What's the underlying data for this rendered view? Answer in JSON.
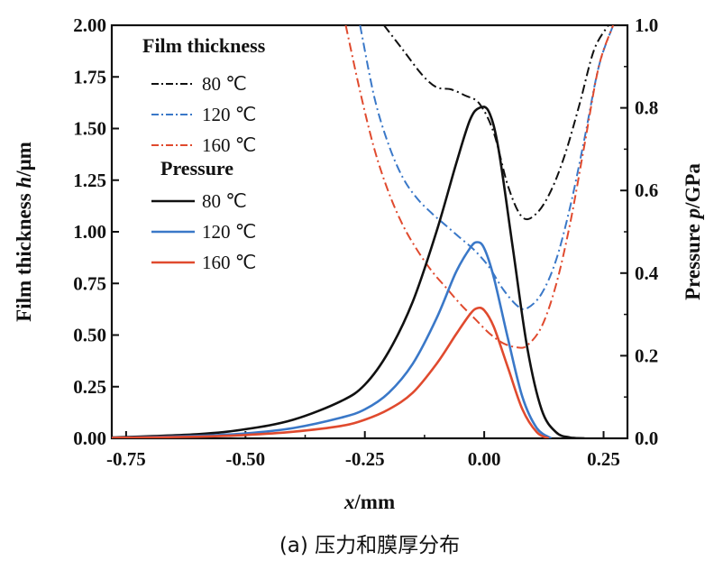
{
  "chart_data": {
    "type": "line",
    "caption": "(a) 压力和膜厚分布",
    "xlabel_var": "x",
    "xlabel_unit": "/mm",
    "ylabel_left_var": "h",
    "ylabel_left_prefix": "Film thickness ",
    "ylabel_left_unit": "/μm",
    "ylabel_right_var": "p",
    "ylabel_right_prefix": "Pressure ",
    "ylabel_right_unit": "/GPa",
    "xlim": [
      -0.78,
      0.3
    ],
    "ylim_left": [
      0,
      2.0
    ],
    "ylim_right": [
      0,
      1.0
    ],
    "x_ticks": [
      "-0.75",
      "-0.50",
      "-0.25",
      "0.00",
      "0.25"
    ],
    "x_tick_values": [
      -0.75,
      -0.5,
      -0.25,
      0.0,
      0.25
    ],
    "y_left_ticks": [
      "0.00",
      "0.25",
      "0.50",
      "0.75",
      "1.00",
      "1.25",
      "1.50",
      "1.75",
      "2.00"
    ],
    "y_left_tick_values": [
      0,
      0.25,
      0.5,
      0.75,
      1.0,
      1.25,
      1.5,
      1.75,
      2.0
    ],
    "y_right_ticks": [
      "0.0",
      "0.2",
      "0.4",
      "0.6",
      "0.8",
      "1.0"
    ],
    "y_right_tick_values": [
      0,
      0.2,
      0.4,
      0.6,
      0.8,
      1.0
    ],
    "legend": {
      "film_heading": "Film thickness",
      "pressure_heading": "Pressure",
      "position": "top-left"
    },
    "film_series": [
      {
        "name": "80 ℃",
        "color": "#111111",
        "dash": "dashdot",
        "x": [
          -0.21,
          -0.17,
          -0.13,
          -0.1,
          -0.07,
          -0.04,
          -0.01,
          0.02,
          0.05,
          0.08,
          0.11,
          0.14,
          0.17,
          0.2,
          0.23,
          0.26
        ],
        "y": [
          2.0,
          1.88,
          1.76,
          1.7,
          1.69,
          1.66,
          1.62,
          1.48,
          1.22,
          1.07,
          1.09,
          1.2,
          1.38,
          1.62,
          1.88,
          2.0
        ]
      },
      {
        "name": "120 ℃",
        "color": "#3a78c8",
        "dash": "dashdot",
        "x": [
          -0.26,
          -0.23,
          -0.2,
          -0.17,
          -0.14,
          -0.11,
          -0.08,
          -0.05,
          -0.02,
          0.01,
          0.04,
          0.07,
          0.09,
          0.12,
          0.15,
          0.18,
          0.21,
          0.24,
          0.27
        ],
        "y": [
          2.0,
          1.65,
          1.42,
          1.26,
          1.16,
          1.09,
          1.03,
          0.97,
          0.91,
          0.83,
          0.72,
          0.64,
          0.63,
          0.7,
          0.86,
          1.12,
          1.45,
          1.8,
          2.0
        ]
      },
      {
        "name": "160 ℃",
        "color": "#e04a2e",
        "dash": "dashdot",
        "x": [
          -0.29,
          -0.26,
          -0.23,
          -0.2,
          -0.17,
          -0.14,
          -0.11,
          -0.08,
          -0.05,
          -0.02,
          0.01,
          0.04,
          0.07,
          0.09,
          0.12,
          0.15,
          0.18,
          0.21,
          0.24,
          0.27
        ],
        "y": [
          2.0,
          1.68,
          1.4,
          1.19,
          1.03,
          0.91,
          0.81,
          0.73,
          0.65,
          0.58,
          0.51,
          0.46,
          0.44,
          0.45,
          0.54,
          0.74,
          1.04,
          1.42,
          1.8,
          2.0
        ]
      }
    ],
    "pressure_series": [
      {
        "name": "80 ℃",
        "color": "#111111",
        "dash": "solid",
        "x": [
          -0.78,
          -0.6,
          -0.5,
          -0.4,
          -0.3,
          -0.25,
          -0.2,
          -0.15,
          -0.1,
          -0.06,
          -0.03,
          -0.01,
          0.01,
          0.03,
          0.06,
          0.09,
          0.12,
          0.15,
          0.18,
          0.21
        ],
        "y": [
          0.002,
          0.01,
          0.022,
          0.045,
          0.09,
          0.13,
          0.21,
          0.33,
          0.5,
          0.66,
          0.77,
          0.8,
          0.79,
          0.7,
          0.46,
          0.22,
          0.07,
          0.015,
          0.002,
          0.0
        ]
      },
      {
        "name": "120 ℃",
        "color": "#3a78c8",
        "dash": "solid",
        "x": [
          -0.78,
          -0.6,
          -0.5,
          -0.4,
          -0.3,
          -0.25,
          -0.2,
          -0.15,
          -0.1,
          -0.06,
          -0.03,
          -0.015,
          0.0,
          0.02,
          0.05,
          0.08,
          0.11,
          0.14
        ],
        "y": [
          0.001,
          0.006,
          0.012,
          0.025,
          0.05,
          0.07,
          0.11,
          0.18,
          0.29,
          0.4,
          0.46,
          0.475,
          0.46,
          0.39,
          0.24,
          0.1,
          0.025,
          0.0
        ]
      },
      {
        "name": "160 ℃",
        "color": "#e04a2e",
        "dash": "solid",
        "x": [
          -0.78,
          -0.6,
          -0.5,
          -0.4,
          -0.3,
          -0.25,
          -0.2,
          -0.15,
          -0.1,
          -0.06,
          -0.03,
          -0.015,
          0.0,
          0.02,
          0.05,
          0.08,
          0.11,
          0.135
        ],
        "y": [
          0.001,
          0.004,
          0.008,
          0.016,
          0.03,
          0.045,
          0.07,
          0.11,
          0.18,
          0.25,
          0.3,
          0.315,
          0.31,
          0.27,
          0.17,
          0.07,
          0.015,
          0.0
        ]
      }
    ]
  }
}
